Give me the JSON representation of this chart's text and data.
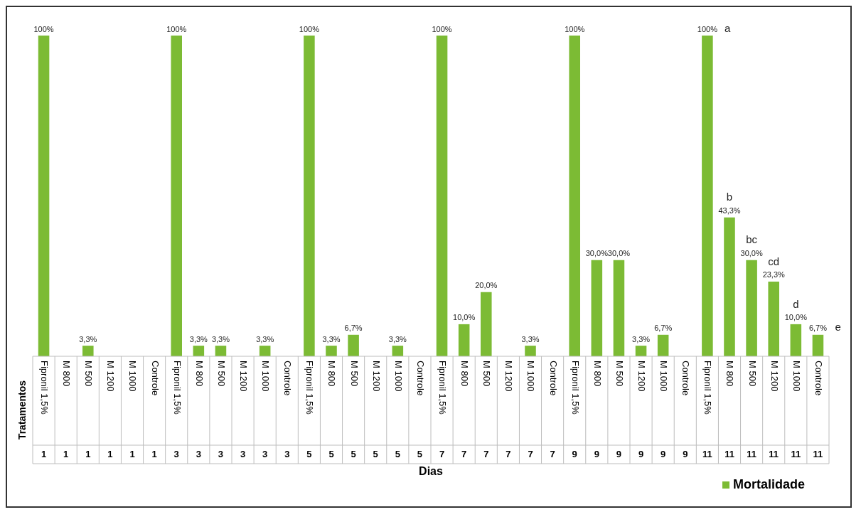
{
  "chart_data": {
    "type": "bar",
    "xlabel": "Dias",
    "ylabel": "Tratamentos",
    "categories": [
      "Fipronil 1,5%",
      "M 800",
      "M 500",
      "M 1200",
      "M 1000",
      "Controle",
      "Fipronil 1,5%",
      "M 800",
      "M 500",
      "M 1200",
      "M 1000",
      "Controle",
      "Fipronil 1,5%",
      "M 800",
      "M 500",
      "M 1200",
      "M 1000",
      "Controle",
      "Fipronil 1,5%",
      "M 800",
      "M 500",
      "M 1200",
      "M 1000",
      "Controle",
      "Fipronil 1,5%",
      "M 800",
      "M 500",
      "M 1200",
      "M 1000",
      "Controle",
      "Fipronil 1,5%",
      "M 800",
      "M 500",
      "M 1200",
      "M 1000",
      "Controle"
    ],
    "series": [
      {
        "name": "Mortalidade",
        "color": "#7cbb34",
        "values": [
          100,
          0,
          3.3,
          0,
          0,
          0,
          100,
          3.3,
          3.3,
          0,
          3.3,
          0,
          100,
          3.3,
          6.7,
          0,
          3.3,
          0,
          100,
          10.0,
          20.0,
          0,
          3.3,
          0,
          100,
          30.0,
          30.0,
          3.3,
          6.7,
          0,
          100,
          43.3,
          30.0,
          23.3,
          10.0,
          6.7
        ],
        "value_labels": [
          "100%",
          null,
          "3,3%",
          null,
          null,
          null,
          "100%",
          "3,3%",
          "3,3%",
          null,
          "3,3%",
          null,
          "100%",
          "3,3%",
          "6,7%",
          null,
          "3,3%",
          null,
          "100%",
          "10,0%",
          "20,0%",
          null,
          "3,3%",
          null,
          "100%",
          "30,0%",
          "30,0%",
          "3,3%",
          "6,7%",
          null,
          "100%",
          "43,3%",
          "30,0%",
          "23,3%",
          "10,0%",
          "6,7%"
        ]
      }
    ],
    "annotations": [
      "a",
      "b",
      "bc",
      "cd",
      "d",
      "e",
      "1",
      "1",
      "1",
      "1",
      "1",
      "1",
      "3",
      "3",
      "3",
      "3",
      "3",
      "3",
      "5",
      "5",
      "5",
      "5",
      "5",
      "5",
      "7",
      "7",
      "7",
      "7",
      "7",
      "7",
      "9",
      "9",
      "9",
      "9",
      "9",
      "9",
      "11",
      "11",
      "11",
      "11",
      "11",
      "11"
    ],
    "legend": "bottom right"
  }
}
